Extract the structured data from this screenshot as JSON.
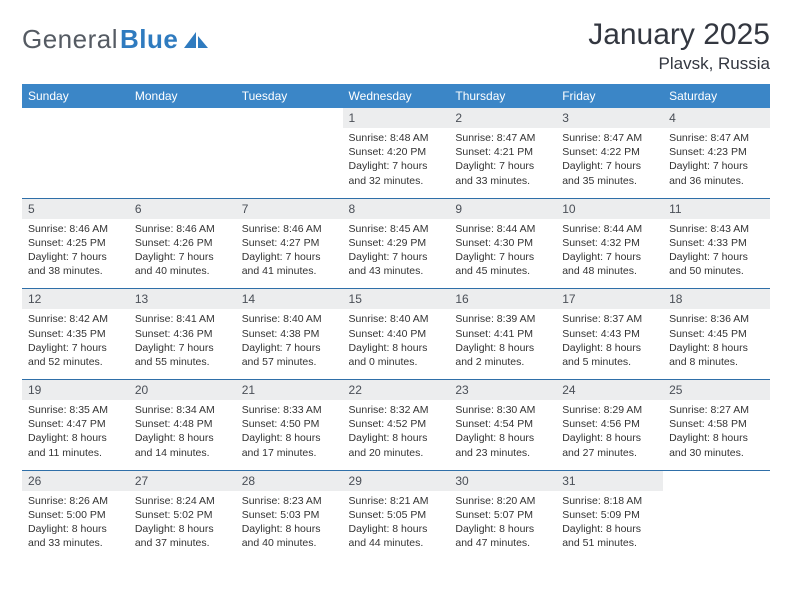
{
  "brand": {
    "text_main": "General",
    "text_accent": "Blue",
    "icon_color": "#2f7bbf"
  },
  "title": "January 2025",
  "location": "Plavsk, Russia",
  "colors": {
    "header_bg": "#3b86c7",
    "week_sep": "#2f6fa8",
    "daynum_bg": "#ecedee",
    "text": "#333333"
  },
  "day_headers": [
    "Sunday",
    "Monday",
    "Tuesday",
    "Wednesday",
    "Thursday",
    "Friday",
    "Saturday"
  ],
  "weeks": [
    [
      {
        "num": "",
        "lines": [
          "",
          "",
          "",
          ""
        ]
      },
      {
        "num": "",
        "lines": [
          "",
          "",
          "",
          ""
        ]
      },
      {
        "num": "",
        "lines": [
          "",
          "",
          "",
          ""
        ]
      },
      {
        "num": "1",
        "lines": [
          "Sunrise: 8:48 AM",
          "Sunset: 4:20 PM",
          "Daylight: 7 hours",
          "and 32 minutes."
        ]
      },
      {
        "num": "2",
        "lines": [
          "Sunrise: 8:47 AM",
          "Sunset: 4:21 PM",
          "Daylight: 7 hours",
          "and 33 minutes."
        ]
      },
      {
        "num": "3",
        "lines": [
          "Sunrise: 8:47 AM",
          "Sunset: 4:22 PM",
          "Daylight: 7 hours",
          "and 35 minutes."
        ]
      },
      {
        "num": "4",
        "lines": [
          "Sunrise: 8:47 AM",
          "Sunset: 4:23 PM",
          "Daylight: 7 hours",
          "and 36 minutes."
        ]
      }
    ],
    [
      {
        "num": "5",
        "lines": [
          "Sunrise: 8:46 AM",
          "Sunset: 4:25 PM",
          "Daylight: 7 hours",
          "and 38 minutes."
        ]
      },
      {
        "num": "6",
        "lines": [
          "Sunrise: 8:46 AM",
          "Sunset: 4:26 PM",
          "Daylight: 7 hours",
          "and 40 minutes."
        ]
      },
      {
        "num": "7",
        "lines": [
          "Sunrise: 8:46 AM",
          "Sunset: 4:27 PM",
          "Daylight: 7 hours",
          "and 41 minutes."
        ]
      },
      {
        "num": "8",
        "lines": [
          "Sunrise: 8:45 AM",
          "Sunset: 4:29 PM",
          "Daylight: 7 hours",
          "and 43 minutes."
        ]
      },
      {
        "num": "9",
        "lines": [
          "Sunrise: 8:44 AM",
          "Sunset: 4:30 PM",
          "Daylight: 7 hours",
          "and 45 minutes."
        ]
      },
      {
        "num": "10",
        "lines": [
          "Sunrise: 8:44 AM",
          "Sunset: 4:32 PM",
          "Daylight: 7 hours",
          "and 48 minutes."
        ]
      },
      {
        "num": "11",
        "lines": [
          "Sunrise: 8:43 AM",
          "Sunset: 4:33 PM",
          "Daylight: 7 hours",
          "and 50 minutes."
        ]
      }
    ],
    [
      {
        "num": "12",
        "lines": [
          "Sunrise: 8:42 AM",
          "Sunset: 4:35 PM",
          "Daylight: 7 hours",
          "and 52 minutes."
        ]
      },
      {
        "num": "13",
        "lines": [
          "Sunrise: 8:41 AM",
          "Sunset: 4:36 PM",
          "Daylight: 7 hours",
          "and 55 minutes."
        ]
      },
      {
        "num": "14",
        "lines": [
          "Sunrise: 8:40 AM",
          "Sunset: 4:38 PM",
          "Daylight: 7 hours",
          "and 57 minutes."
        ]
      },
      {
        "num": "15",
        "lines": [
          "Sunrise: 8:40 AM",
          "Sunset: 4:40 PM",
          "Daylight: 8 hours",
          "and 0 minutes."
        ]
      },
      {
        "num": "16",
        "lines": [
          "Sunrise: 8:39 AM",
          "Sunset: 4:41 PM",
          "Daylight: 8 hours",
          "and 2 minutes."
        ]
      },
      {
        "num": "17",
        "lines": [
          "Sunrise: 8:37 AM",
          "Sunset: 4:43 PM",
          "Daylight: 8 hours",
          "and 5 minutes."
        ]
      },
      {
        "num": "18",
        "lines": [
          "Sunrise: 8:36 AM",
          "Sunset: 4:45 PM",
          "Daylight: 8 hours",
          "and 8 minutes."
        ]
      }
    ],
    [
      {
        "num": "19",
        "lines": [
          "Sunrise: 8:35 AM",
          "Sunset: 4:47 PM",
          "Daylight: 8 hours",
          "and 11 minutes."
        ]
      },
      {
        "num": "20",
        "lines": [
          "Sunrise: 8:34 AM",
          "Sunset: 4:48 PM",
          "Daylight: 8 hours",
          "and 14 minutes."
        ]
      },
      {
        "num": "21",
        "lines": [
          "Sunrise: 8:33 AM",
          "Sunset: 4:50 PM",
          "Daylight: 8 hours",
          "and 17 minutes."
        ]
      },
      {
        "num": "22",
        "lines": [
          "Sunrise: 8:32 AM",
          "Sunset: 4:52 PM",
          "Daylight: 8 hours",
          "and 20 minutes."
        ]
      },
      {
        "num": "23",
        "lines": [
          "Sunrise: 8:30 AM",
          "Sunset: 4:54 PM",
          "Daylight: 8 hours",
          "and 23 minutes."
        ]
      },
      {
        "num": "24",
        "lines": [
          "Sunrise: 8:29 AM",
          "Sunset: 4:56 PM",
          "Daylight: 8 hours",
          "and 27 minutes."
        ]
      },
      {
        "num": "25",
        "lines": [
          "Sunrise: 8:27 AM",
          "Sunset: 4:58 PM",
          "Daylight: 8 hours",
          "and 30 minutes."
        ]
      }
    ],
    [
      {
        "num": "26",
        "lines": [
          "Sunrise: 8:26 AM",
          "Sunset: 5:00 PM",
          "Daylight: 8 hours",
          "and 33 minutes."
        ]
      },
      {
        "num": "27",
        "lines": [
          "Sunrise: 8:24 AM",
          "Sunset: 5:02 PM",
          "Daylight: 8 hours",
          "and 37 minutes."
        ]
      },
      {
        "num": "28",
        "lines": [
          "Sunrise: 8:23 AM",
          "Sunset: 5:03 PM",
          "Daylight: 8 hours",
          "and 40 minutes."
        ]
      },
      {
        "num": "29",
        "lines": [
          "Sunrise: 8:21 AM",
          "Sunset: 5:05 PM",
          "Daylight: 8 hours",
          "and 44 minutes."
        ]
      },
      {
        "num": "30",
        "lines": [
          "Sunrise: 8:20 AM",
          "Sunset: 5:07 PM",
          "Daylight: 8 hours",
          "and 47 minutes."
        ]
      },
      {
        "num": "31",
        "lines": [
          "Sunrise: 8:18 AM",
          "Sunset: 5:09 PM",
          "Daylight: 8 hours",
          "and 51 minutes."
        ]
      },
      {
        "num": "",
        "lines": [
          "",
          "",
          "",
          ""
        ]
      }
    ]
  ]
}
